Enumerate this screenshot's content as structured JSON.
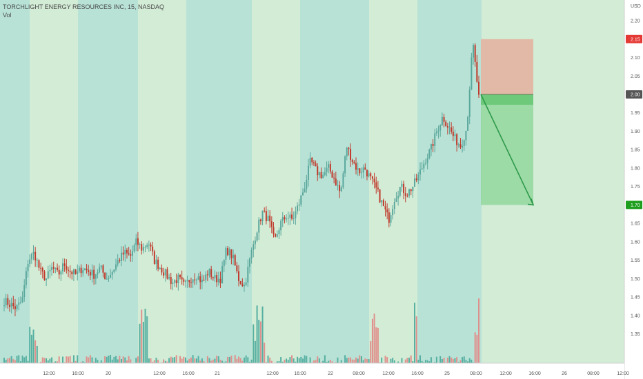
{
  "header": {
    "title": "TORCHLIGHT ENERGY RESOURCES INC, 15, NASDAQ",
    "indicator": "Vol"
  },
  "colors": {
    "up": "#5aa79c",
    "down": "#c0392b",
    "vol_up": "#56b0a2",
    "vol_down": "#e0908c",
    "session_teal": "#b8e2d6",
    "session_green": "#d3ecd6",
    "stop_zone": "#e1b9a6",
    "target_zone": "#8fd69a",
    "target_arrow": "#2e9a4a",
    "stop_badge": "#e53935",
    "target_badge": "#1e9e1e",
    "entry_badge": "#555555"
  },
  "chart_data": {
    "type": "candlestick",
    "title": "TORCHLIGHT ENERGY RESOURCES INC, 15, NASDAQ",
    "currency": "USD",
    "ylim": [
      1.31,
      2.23
    ],
    "y_ticks": [
      "2.20",
      "2.15",
      "2.10",
      "2.05",
      "2.00",
      "1.95",
      "1.90",
      "1.85",
      "1.80",
      "1.75",
      "1.70",
      "1.65",
      "1.60",
      "1.55",
      "1.50",
      "1.45",
      "1.40",
      "1.35"
    ],
    "x_ticks": [
      "12:00",
      "16:00",
      "20",
      "12:00",
      "16:00",
      "21",
      "12:00",
      "16:00",
      "22",
      "08:00",
      "12:00",
      "16:00",
      "25",
      "08:00",
      "12:00",
      "16:00",
      "26",
      "08:00",
      "12:00"
    ],
    "legend": "none",
    "grid": false,
    "price_path": [
      [
        1.44,
        1.43,
        1.42,
        1.44
      ],
      [
        1.55,
        1.57,
        1.52,
        1.5,
        1.53,
        1.51,
        1.54,
        1.52,
        1.51,
        1.53
      ],
      [
        1.52,
        1.51,
        1.53,
        1.5,
        1.52,
        1.55,
        1.57,
        1.56,
        1.6
      ],
      [
        1.58,
        1.6,
        1.55,
        1.53,
        1.51,
        1.49,
        1.5,
        1.48,
        1.5,
        1.51,
        1.49,
        1.52,
        1.5,
        1.5
      ],
      [
        1.58,
        1.56,
        1.5,
        1.48,
        1.56,
        1.63,
        1.68,
        1.66,
        1.6,
        1.65,
        1.67,
        1.66
      ],
      [
        1.7,
        1.75,
        1.82,
        1.79,
        1.78,
        1.8,
        1.77,
        1.73
      ],
      [
        1.86,
        1.82,
        1.79,
        1.8,
        1.77,
        1.74,
        1.7,
        1.66
      ],
      [
        1.72,
        1.75,
        1.73,
        1.75,
        1.78,
        1.82,
        1.85,
        1.9,
        1.94,
        1.91,
        1.88,
        1.86,
        1.91,
        2.14,
        1.99
      ]
    ],
    "volume_max": 1.0,
    "position": {
      "type": "short",
      "stop": 2.15,
      "entry": 2.0,
      "target": 1.7
    },
    "price_labels": {
      "stop": "2.15",
      "entry": "2.00",
      "target": "1.70"
    }
  }
}
